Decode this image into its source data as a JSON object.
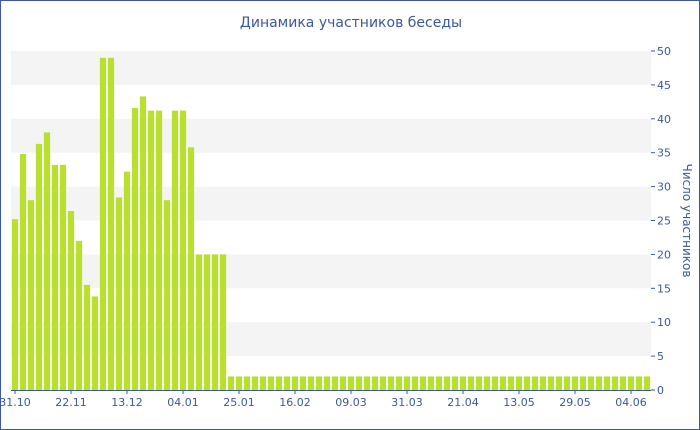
{
  "chart_data": {
    "type": "bar",
    "title": "Динамика участников беседы",
    "ylabel": "Число участников",
    "xlabel": "",
    "ylim": [
      0,
      50
    ],
    "y_ticks": [
      0,
      5,
      10,
      15,
      20,
      25,
      30,
      35,
      40,
      45,
      50
    ],
    "y_axis_side": "right",
    "grid": "alternating horizontal bands",
    "bar_color": "#b9e02f",
    "x_tick_labels": [
      "31.10",
      "22.11",
      "13.12",
      "04.01",
      "25.01",
      "16.02",
      "09.03",
      "31.03",
      "21.04",
      "13.05",
      "29.05",
      "04.06"
    ],
    "x_tick_label_bar_index": [
      0,
      7,
      14,
      21,
      28,
      35,
      42,
      49,
      56,
      63,
      70,
      77
    ],
    "values": [
      25.2,
      34.8,
      28,
      36.3,
      38,
      33.2,
      33.2,
      26.4,
      22,
      15.5,
      13.8,
      49,
      49,
      28.4,
      32.2,
      41.6,
      43.3,
      41.2,
      41.2,
      28,
      41.2,
      41.2,
      35.8,
      20,
      20,
      20,
      20,
      2,
      2,
      2,
      2,
      2,
      2,
      2,
      2,
      2,
      2,
      2,
      2,
      2,
      2,
      2,
      2,
      2,
      2,
      2,
      2,
      2,
      2,
      2,
      2,
      2,
      2,
      2,
      2,
      2,
      2,
      2,
      2,
      2,
      2,
      2,
      2,
      2,
      2,
      2,
      2,
      2,
      2,
      2,
      2,
      2,
      2,
      2,
      2,
      2,
      2,
      2,
      2,
      2
    ]
  }
}
